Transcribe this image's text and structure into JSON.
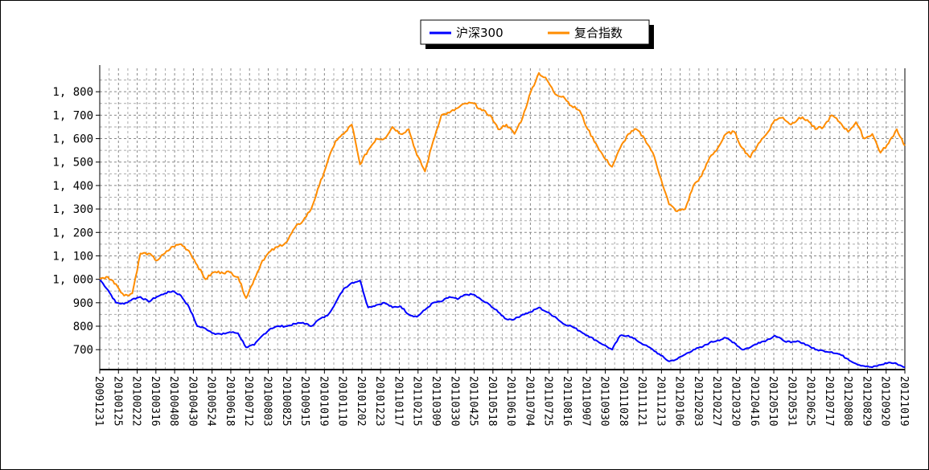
{
  "chart_data": {
    "type": "line",
    "title": "",
    "xlabel": "",
    "ylabel": "",
    "ylim": [
      615,
      1900
    ],
    "grid": true,
    "legend_position": "top-center",
    "y_ticks": [
      700,
      800,
      900,
      1000,
      1100,
      1200,
      1300,
      1400,
      1500,
      1600,
      1700,
      1800
    ],
    "y_tick_labels": [
      "700",
      "800",
      "900",
      "1, 000",
      "1, 100",
      "1, 200",
      "1, 300",
      "1, 400",
      "1, 500",
      "1, 600",
      "1, 700",
      "1, 800"
    ],
    "x_tick_labels": [
      "20091231",
      "20100125",
      "20100222",
      "20100316",
      "20100408",
      "20100430",
      "20100524",
      "20100618",
      "20100712",
      "20100803",
      "20100825",
      "20100915",
      "20101019",
      "20101110",
      "20101202",
      "20101223",
      "20110117",
      "20110215",
      "20110309",
      "20110330",
      "20110425",
      "20110518",
      "20110610",
      "20110704",
      "20110725",
      "20110816",
      "20110907",
      "20110930",
      "20111028",
      "20111121",
      "20111213",
      "20120106",
      "20120203",
      "20120227",
      "20120320",
      "20120416",
      "20120510",
      "20120531",
      "20120625",
      "20120717",
      "20120808",
      "20120829",
      "20120920",
      "20121019"
    ],
    "series": [
      {
        "name": "沪深300",
        "color": "#0000ff",
        "values": [
          1000,
          955,
          900,
          895,
          915,
          925,
          905,
          925,
          940,
          950,
          930,
          880,
          800,
          790,
          770,
          765,
          775,
          770,
          710,
          720,
          760,
          790,
          800,
          800,
          810,
          815,
          800,
          830,
          845,
          900,
          960,
          985,
          995,
          880,
          890,
          900,
          880,
          885,
          850,
          840,
          870,
          900,
          905,
          925,
          915,
          935,
          935,
          910,
          890,
          860,
          830,
          830,
          850,
          860,
          880,
          860,
          840,
          810,
          800,
          780,
          760,
          740,
          720,
          700,
          760,
          760,
          740,
          720,
          700,
          675,
          650,
          660,
          680,
          700,
          710,
          730,
          740,
          750,
          730,
          700,
          710,
          730,
          740,
          760,
          740,
          730,
          735,
          720,
          700,
          695,
          690,
          680,
          660,
          640,
          630,
          625,
          635,
          645,
          640,
          625
        ]
      },
      {
        "name": "复合指数",
        "color": "#ff8c00",
        "values": [
          1000,
          1010,
          980,
          930,
          940,
          1110,
          1110,
          1080,
          1110,
          1140,
          1150,
          1120,
          1060,
          1000,
          1030,
          1030,
          1030,
          1010,
          920,
          1000,
          1080,
          1120,
          1140,
          1160,
          1220,
          1250,
          1300,
          1400,
          1500,
          1590,
          1620,
          1660,
          1490,
          1550,
          1600,
          1600,
          1650,
          1620,
          1640,
          1530,
          1460,
          1590,
          1700,
          1710,
          1730,
          1750,
          1750,
          1720,
          1700,
          1640,
          1660,
          1620,
          1690,
          1800,
          1880,
          1850,
          1790,
          1780,
          1740,
          1720,
          1640,
          1580,
          1520,
          1480,
          1560,
          1620,
          1640,
          1600,
          1540,
          1430,
          1320,
          1290,
          1300,
          1400,
          1440,
          1520,
          1560,
          1620,
          1630,
          1560,
          1520,
          1580,
          1620,
          1680,
          1690,
          1660,
          1690,
          1680,
          1640,
          1650,
          1700,
          1670,
          1630,
          1670,
          1600,
          1620,
          1540,
          1580,
          1640,
          1570
        ]
      }
    ]
  }
}
